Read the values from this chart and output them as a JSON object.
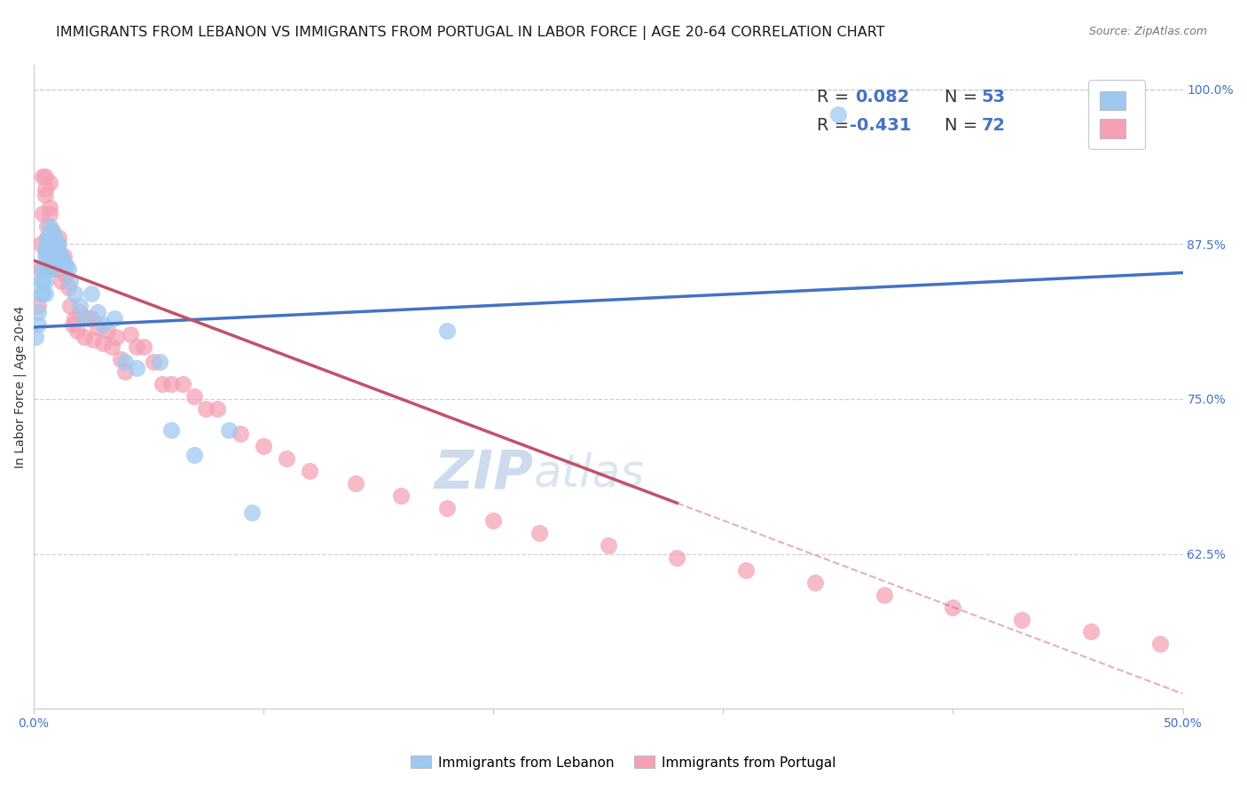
{
  "title": "IMMIGRANTS FROM LEBANON VS IMMIGRANTS FROM PORTUGAL IN LABOR FORCE | AGE 20-64 CORRELATION CHART",
  "source_text": "Source: ZipAtlas.com",
  "ylabel": "In Labor Force | Age 20-64",
  "xlim": [
    0.0,
    0.5
  ],
  "ylim": [
    0.5,
    1.02
  ],
  "xticks": [
    0.0,
    0.1,
    0.2,
    0.3,
    0.4,
    0.5
  ],
  "xticklabels": [
    "0.0%",
    "",
    "",
    "",
    "",
    "50.0%"
  ],
  "ytick_vals": [
    0.625,
    0.75,
    0.875,
    1.0
  ],
  "ytick_right_labels": [
    "62.5%",
    "75.0%",
    "87.5%",
    "100.0%"
  ],
  "r_lebanon": 0.082,
  "n_lebanon": 53,
  "r_portugal": -0.431,
  "n_portugal": 72,
  "color_lebanon": "#9dc8f0",
  "color_portugal": "#f5a0b5",
  "line_lebanon": "#4472c4",
  "line_portugal": "#c0526a",
  "watermark_zip": "ZIP",
  "watermark_atlas": "atlas",
  "background_color": "#ffffff",
  "grid_color": "#d0d0d0",
  "title_fontsize": 11.5,
  "axis_label_fontsize": 10,
  "tick_fontsize": 10,
  "legend_fontsize": 14,
  "watermark_fontsize": 44,
  "source_fontsize": 9,
  "lebanon_x": [
    0.001,
    0.002,
    0.002,
    0.003,
    0.003,
    0.004,
    0.004,
    0.004,
    0.005,
    0.005,
    0.005,
    0.005,
    0.005,
    0.006,
    0.006,
    0.006,
    0.006,
    0.007,
    0.007,
    0.007,
    0.007,
    0.008,
    0.008,
    0.008,
    0.008,
    0.009,
    0.009,
    0.009,
    0.01,
    0.01,
    0.011,
    0.011,
    0.012,
    0.013,
    0.014,
    0.015,
    0.016,
    0.018,
    0.02,
    0.022,
    0.025,
    0.028,
    0.03,
    0.035,
    0.04,
    0.045,
    0.055,
    0.06,
    0.07,
    0.085,
    0.095,
    0.18,
    0.35
  ],
  "lebanon_y": [
    0.8,
    0.82,
    0.81,
    0.845,
    0.835,
    0.855,
    0.845,
    0.835,
    0.87,
    0.865,
    0.855,
    0.845,
    0.835,
    0.88,
    0.875,
    0.865,
    0.855,
    0.89,
    0.88,
    0.87,
    0.86,
    0.885,
    0.875,
    0.865,
    0.855,
    0.882,
    0.875,
    0.865,
    0.875,
    0.865,
    0.875,
    0.865,
    0.865,
    0.86,
    0.858,
    0.855,
    0.845,
    0.835,
    0.825,
    0.815,
    0.835,
    0.82,
    0.81,
    0.815,
    0.78,
    0.775,
    0.78,
    0.725,
    0.705,
    0.725,
    0.658,
    0.805,
    0.98
  ],
  "portugal_x": [
    0.002,
    0.003,
    0.003,
    0.004,
    0.004,
    0.005,
    0.005,
    0.005,
    0.006,
    0.006,
    0.006,
    0.007,
    0.007,
    0.007,
    0.008,
    0.008,
    0.009,
    0.009,
    0.009,
    0.01,
    0.01,
    0.011,
    0.011,
    0.012,
    0.012,
    0.013,
    0.014,
    0.015,
    0.016,
    0.017,
    0.018,
    0.019,
    0.02,
    0.022,
    0.024,
    0.025,
    0.026,
    0.028,
    0.03,
    0.032,
    0.034,
    0.036,
    0.038,
    0.04,
    0.042,
    0.045,
    0.048,
    0.052,
    0.056,
    0.06,
    0.065,
    0.07,
    0.075,
    0.08,
    0.09,
    0.1,
    0.11,
    0.12,
    0.14,
    0.16,
    0.18,
    0.2,
    0.22,
    0.25,
    0.28,
    0.31,
    0.34,
    0.37,
    0.4,
    0.43,
    0.46,
    0.49
  ],
  "portugal_y": [
    0.825,
    0.855,
    0.875,
    0.9,
    0.93,
    0.92,
    0.915,
    0.93,
    0.89,
    0.88,
    0.87,
    0.9,
    0.925,
    0.905,
    0.885,
    0.875,
    0.875,
    0.865,
    0.855,
    0.865,
    0.855,
    0.88,
    0.87,
    0.855,
    0.845,
    0.865,
    0.85,
    0.84,
    0.825,
    0.81,
    0.815,
    0.805,
    0.82,
    0.8,
    0.815,
    0.815,
    0.798,
    0.808,
    0.795,
    0.805,
    0.792,
    0.8,
    0.782,
    0.772,
    0.802,
    0.792,
    0.792,
    0.78,
    0.762,
    0.762,
    0.762,
    0.752,
    0.742,
    0.742,
    0.722,
    0.712,
    0.702,
    0.692,
    0.682,
    0.672,
    0.662,
    0.652,
    0.642,
    0.632,
    0.622,
    0.612,
    0.602,
    0.592,
    0.582,
    0.572,
    0.562,
    0.552
  ],
  "line_lebanon_x0": 0.0,
  "line_lebanon_x1": 0.5,
  "line_lebanon_y0": 0.808,
  "line_lebanon_y1": 0.852,
  "line_portugal_x0": 0.0,
  "line_portugal_x1": 0.5,
  "line_portugal_y0": 0.862,
  "line_portugal_y1": 0.512,
  "line_portugal_solid_end": 0.28
}
